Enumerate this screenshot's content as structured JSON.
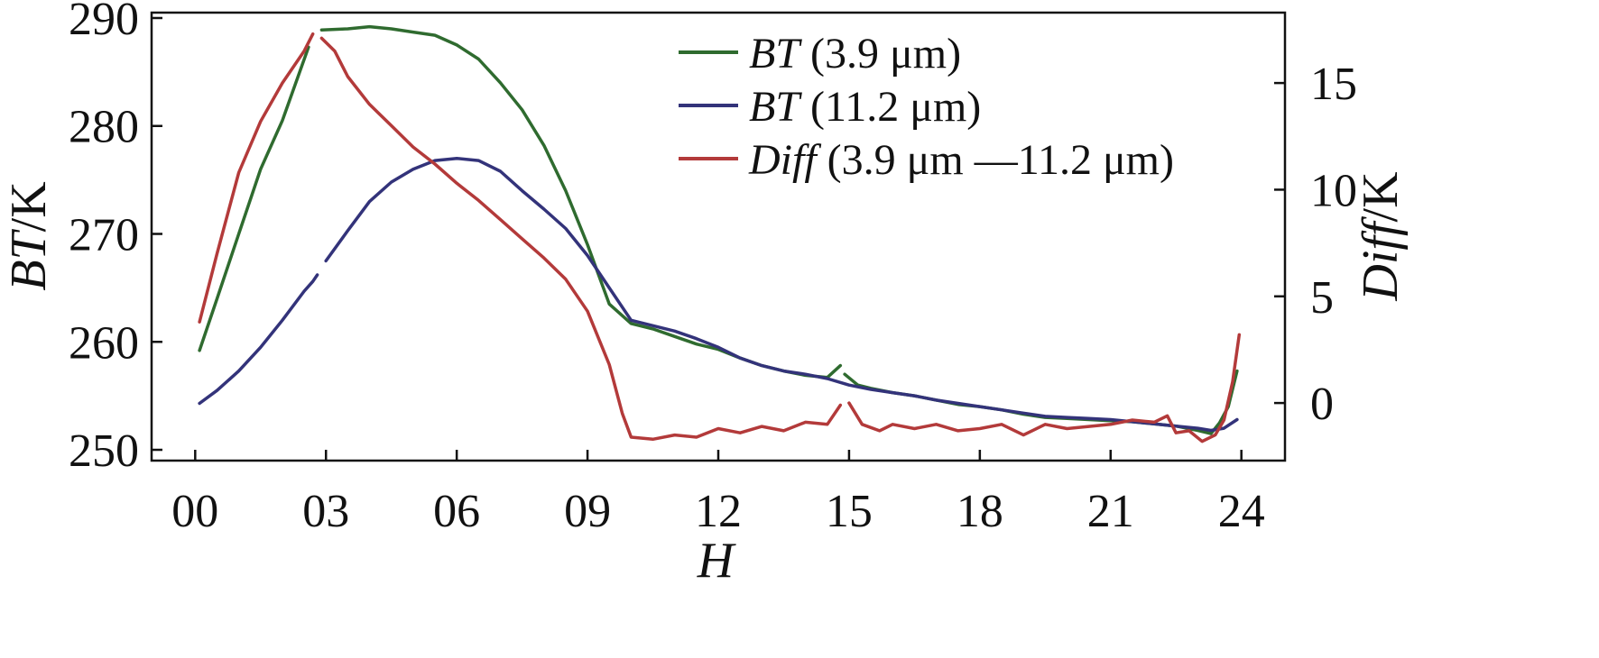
{
  "chart_data": {
    "type": "line",
    "xlabel": "H",
    "ylabel_left": {
      "prefix": "BT",
      "suffix": "/K"
    },
    "ylabel_right": {
      "prefix": "Diff",
      "suffix": "/K"
    },
    "xlim": [
      -1,
      25
    ],
    "ylim_left": [
      249,
      290.5
    ],
    "ylim_right": [
      -2.7,
      18.3
    ],
    "x_ticks": [
      0,
      3,
      6,
      9,
      12,
      15,
      18,
      21,
      24
    ],
    "x_tick_labels": [
      "00",
      "03",
      "06",
      "09",
      "12",
      "15",
      "18",
      "21",
      "24"
    ],
    "y_left_ticks": [
      250,
      260,
      270,
      280,
      290
    ],
    "y_left_tick_labels": [
      "250",
      "260",
      "270",
      "280",
      "290"
    ],
    "y_right_ticks": [
      0,
      5,
      10,
      15
    ],
    "y_right_tick_labels": [
      "0",
      "5",
      "10",
      "15"
    ],
    "grid": false,
    "legend_position": "top-right",
    "series": [
      {
        "name": "3.9 μm",
        "label_prefix": "BT",
        "label_text": " (3.9 μm)",
        "axis": "left",
        "color": "#2f6b2f",
        "segments": [
          [
            [
              0.1,
              259.2
            ],
            [
              0.5,
              264
            ],
            [
              1,
              270
            ],
            [
              1.5,
              276
            ],
            [
              2,
              280.5
            ],
            [
              2.6,
              287.3
            ]
          ],
          [
            [
              2.9,
              288.9
            ],
            [
              3.5,
              289
            ],
            [
              4,
              289.2
            ],
            [
              4.5,
              289
            ],
            [
              5,
              288.7
            ],
            [
              5.5,
              288.4
            ],
            [
              6,
              287.5
            ],
            [
              6.5,
              286.2
            ],
            [
              7,
              284
            ],
            [
              7.5,
              281.5
            ],
            [
              8,
              278.2
            ],
            [
              8.5,
              274
            ],
            [
              9,
              269
            ],
            [
              9.5,
              263.5
            ],
            [
              10,
              261.7
            ],
            [
              10.5,
              261.2
            ],
            [
              11,
              260.5
            ],
            [
              11.5,
              259.8
            ],
            [
              12,
              259.3
            ],
            [
              12.5,
              258.5
            ],
            [
              13,
              257.8
            ],
            [
              13.5,
              257.3
            ],
            [
              14,
              256.9
            ],
            [
              14.5,
              256.7
            ],
            [
              14.8,
              257.8
            ]
          ],
          [
            [
              14.9,
              257
            ],
            [
              15.2,
              256
            ],
            [
              15.5,
              255.7
            ],
            [
              16,
              255.3
            ],
            [
              16.5,
              255
            ],
            [
              17,
              254.6
            ],
            [
              17.5,
              254.2
            ],
            [
              18,
              254
            ],
            [
              18.5,
              253.7
            ],
            [
              19,
              253.3
            ],
            [
              19.5,
              253
            ],
            [
              20,
              252.9
            ],
            [
              20.5,
              252.8
            ],
            [
              21,
              252.7
            ],
            [
              21.5,
              252.6
            ],
            [
              22,
              252.4
            ],
            [
              22.5,
              252.2
            ],
            [
              23,
              251.8
            ],
            [
              23.3,
              251.5
            ],
            [
              23.5,
              252.5
            ],
            [
              23.7,
              254
            ],
            [
              23.9,
              257.3
            ]
          ]
        ]
      },
      {
        "name": "11.2 μm",
        "label_prefix": "BT",
        "label_text": " (11.2 μm)",
        "axis": "left",
        "color": "#33337a",
        "segments": [
          [
            [
              0.1,
              254.3
            ],
            [
              0.5,
              255.5
            ],
            [
              1,
              257.3
            ],
            [
              1.5,
              259.5
            ],
            [
              2,
              262
            ],
            [
              2.5,
              264.7
            ],
            [
              2.7,
              265.6
            ],
            [
              2.8,
              266.2
            ]
          ],
          [
            [
              3,
              267.5
            ],
            [
              3.5,
              270.3
            ],
            [
              4,
              273
            ],
            [
              4.5,
              274.8
            ],
            [
              5,
              276
            ],
            [
              5.5,
              276.8
            ],
            [
              6,
              277
            ],
            [
              6.5,
              276.8
            ],
            [
              7,
              275.8
            ],
            [
              7.5,
              274
            ],
            [
              8,
              272.3
            ],
            [
              8.5,
              270.5
            ],
            [
              9,
              268
            ],
            [
              9.5,
              265
            ],
            [
              10,
              262
            ],
            [
              10.5,
              261.5
            ],
            [
              11,
              261
            ],
            [
              11.5,
              260.3
            ],
            [
              12,
              259.5
            ],
            [
              12.5,
              258.5
            ],
            [
              13,
              257.8
            ],
            [
              13.5,
              257.3
            ],
            [
              14,
              257
            ],
            [
              14.5,
              256.6
            ],
            [
              15,
              256
            ],
            [
              15.5,
              255.6
            ],
            [
              16,
              255.3
            ],
            [
              16.5,
              255
            ],
            [
              17,
              254.6
            ],
            [
              17.5,
              254.3
            ],
            [
              18,
              254
            ],
            [
              18.5,
              253.7
            ],
            [
              19,
              253.4
            ],
            [
              19.5,
              253.1
            ],
            [
              20,
              253
            ],
            [
              20.5,
              252.9
            ],
            [
              21,
              252.8
            ],
            [
              21.5,
              252.6
            ],
            [
              22,
              252.4
            ],
            [
              22.5,
              252.2
            ],
            [
              23,
              252
            ],
            [
              23.3,
              251.8
            ],
            [
              23.6,
              252
            ],
            [
              23.9,
              252.8
            ]
          ]
        ]
      },
      {
        "name": "(3.9 μm —11.2 μm)",
        "label_prefix": "Diff",
        "label_text": " (3.9 μm —11.2 μm)",
        "axis": "right",
        "color": "#b33a3a",
        "segments": [
          [
            [
              0.1,
              3.8
            ],
            [
              0.5,
              7
            ],
            [
              1,
              10.8
            ],
            [
              1.5,
              13.2
            ],
            [
              2,
              15
            ],
            [
              2.5,
              16.5
            ],
            [
              2.7,
              17.3
            ]
          ],
          [
            [
              2.9,
              17.1
            ],
            [
              3.2,
              16.5
            ],
            [
              3.5,
              15.3
            ],
            [
              4,
              14
            ],
            [
              4.5,
              13
            ],
            [
              5,
              12
            ],
            [
              5.5,
              11.2
            ],
            [
              6,
              10.3
            ],
            [
              6.5,
              9.5
            ],
            [
              7,
              8.6
            ],
            [
              7.5,
              7.7
            ],
            [
              8,
              6.8
            ],
            [
              8.5,
              5.8
            ],
            [
              9,
              4.3
            ],
            [
              9.5,
              1.8
            ],
            [
              9.8,
              -0.5
            ],
            [
              10,
              -1.6
            ],
            [
              10.5,
              -1.7
            ],
            [
              11,
              -1.5
            ],
            [
              11.5,
              -1.6
            ],
            [
              12,
              -1.2
            ],
            [
              12.5,
              -1.4
            ],
            [
              13,
              -1.1
            ],
            [
              13.5,
              -1.3
            ],
            [
              14,
              -0.9
            ],
            [
              14.5,
              -1
            ],
            [
              14.8,
              -0.1
            ]
          ],
          [
            [
              15,
              0
            ],
            [
              15.3,
              -1
            ],
            [
              15.7,
              -1.3
            ],
            [
              16,
              -1
            ],
            [
              16.5,
              -1.2
            ],
            [
              17,
              -1
            ],
            [
              17.5,
              -1.3
            ],
            [
              18,
              -1.2
            ],
            [
              18.5,
              -1
            ],
            [
              19,
              -1.5
            ],
            [
              19.5,
              -1
            ],
            [
              20,
              -1.2
            ],
            [
              20.5,
              -1.1
            ],
            [
              21,
              -1
            ],
            [
              21.5,
              -0.8
            ],
            [
              22,
              -0.9
            ],
            [
              22.3,
              -0.6
            ],
            [
              22.5,
              -1.4
            ],
            [
              22.8,
              -1.3
            ],
            [
              23.1,
              -1.8
            ],
            [
              23.4,
              -1.5
            ],
            [
              23.6,
              -0.8
            ],
            [
              23.8,
              1
            ],
            [
              23.95,
              3.2
            ]
          ]
        ]
      }
    ]
  }
}
